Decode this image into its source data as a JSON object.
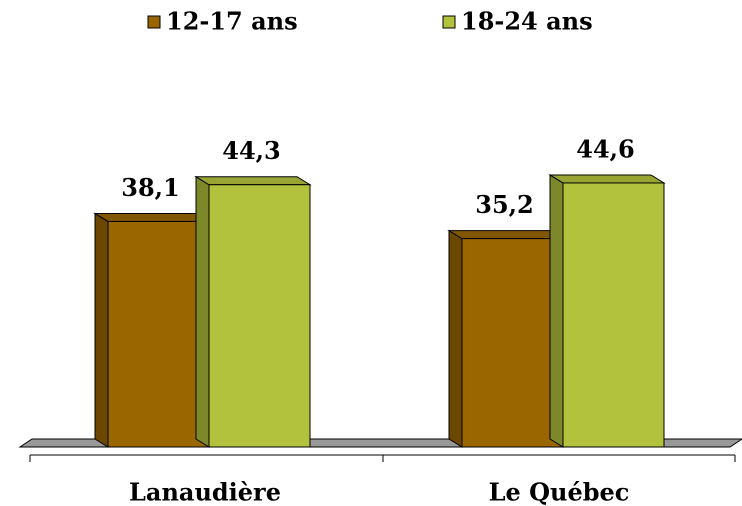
{
  "chart_data": {
    "type": "bar",
    "categories": [
      "Lanaudière",
      "Le Québec"
    ],
    "series": [
      {
        "name": "12-17 ans",
        "color": "#996600",
        "values": [
          38.1,
          35.2
        ],
        "value_labels": [
          "38,1",
          "35,2"
        ]
      },
      {
        "name": "18-24 ans",
        "color": "#b3c23c",
        "values": [
          44.3,
          44.6
        ],
        "value_labels": [
          "44,3",
          "44,6"
        ]
      }
    ],
    "legend": "top"
  }
}
